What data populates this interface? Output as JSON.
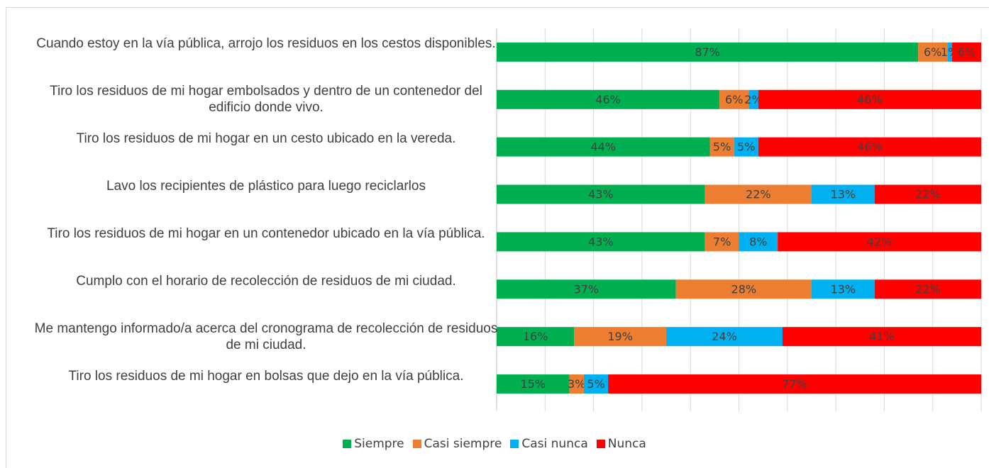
{
  "chart_data": {
    "type": "stacked_bar_horizontal",
    "categories": [
      "Cuando estoy en la vía pública, arrojo los residuos en los cestos disponibles.",
      "Tiro los residuos de mi hogar embolsados y dentro de un contenedor del edificio donde vivo.",
      "Tiro los residuos de mi hogar en un cesto ubicado en la vereda.",
      "Lavo los recipientes de plástico para luego reciclarlos",
      "Tiro los residuos de mi hogar en un contenedor ubicado en la vía pública.",
      "Cumplo con el horario de recolección de residuos de mi ciudad.",
      "Me mantengo informado/a acerca del cronograma de recolección de residuos de mi ciudad.",
      "Tiro los residuos de mi hogar en bolsas que dejo en la vía pública."
    ],
    "series": [
      {
        "name": "Siempre",
        "color": "#00b050",
        "values": [
          87,
          46,
          44,
          43,
          43,
          37,
          16,
          15
        ],
        "value_labels": [
          "87%",
          "46%",
          "44%",
          "43%",
          "43%",
          "37%",
          "16%",
          "15%"
        ]
      },
      {
        "name": "Casi siempre",
        "color": "#ed7d31",
        "values": [
          6,
          6,
          5,
          22,
          7,
          28,
          19,
          3
        ],
        "value_labels": [
          "6%",
          "6%",
          "5%",
          "22%",
          "7%",
          "28%",
          "19%",
          "3%"
        ]
      },
      {
        "name": "Casi nunca",
        "color": "#00b0f0",
        "values": [
          1,
          2,
          5,
          13,
          8,
          13,
          24,
          5
        ],
        "value_labels": [
          "1%",
          "2%",
          "5%",
          "13%",
          "8%",
          "13%",
          "24%",
          "5%"
        ]
      },
      {
        "name": "Nunca",
        "color": "#ff0000",
        "values": [
          6,
          46,
          46,
          22,
          42,
          22,
          41,
          77
        ],
        "value_labels": [
          "6%",
          "46%",
          "46%",
          "22%",
          "42%",
          "22%",
          "41%",
          "77%"
        ]
      }
    ],
    "xlim": [
      0,
      100
    ],
    "xticks": [
      0,
      10,
      20,
      30,
      40,
      50,
      60,
      70,
      80,
      90,
      100
    ],
    "grid": true,
    "legend": "bottom"
  }
}
